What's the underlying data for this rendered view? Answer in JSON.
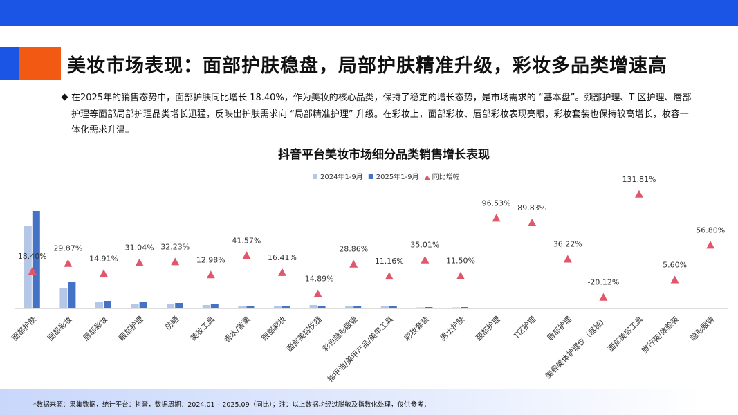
{
  "header": {
    "title": "美妆市场表现：面部护肤稳盘，局部护肤精准升级，彩妆多品类增速高"
  },
  "summary": "在2025年的销售态势中，面部护肤同比增长 18.40%，作为美妆的核心品类，保持了稳定的增长态势，是市场需求的 “基本盘”。颈部护理、T 区护理、唇部护理等面部局部护理品类增长迅猛，反映出护肤需求向 “局部精准护理” 升级。在彩妆上，面部彩妆、唇部彩妆表现亮眼，彩妆套装也保持较高增长，妆容一体化需求升温。",
  "chart_data": {
    "type": "bar",
    "title": "抖音平台美妆市场细分品类销售增长表现",
    "categories": [
      "面部护肤",
      "面部彩妆",
      "唇部彩妆",
      "眼部护理",
      "防晒",
      "美妆工具",
      "香水/香薰",
      "眼部彩妆",
      "面部美容仪器",
      "彩色隐形眼镜",
      "指甲油/美甲产品/美甲工具",
      "彩妆套装",
      "男士护肤",
      "颈部护理",
      "T区护理",
      "唇部护理",
      "美容美体护理仪（器械）",
      "面部美容工具",
      "旅行装/体验装",
      "隐形眼镜"
    ],
    "series": [
      {
        "name": "2024年1-9月",
        "color": "#b4c7e7",
        "values": [
          119,
          29,
          10,
          7,
          6,
          5,
          3,
          3,
          5,
          3,
          3,
          1.5,
          1.5,
          0.5,
          0.5,
          0.2,
          0.1,
          0.05,
          0.1,
          0.05
        ]
      },
      {
        "name": "2025年1-9月",
        "color": "#4472c4",
        "values": [
          141,
          39,
          11,
          9,
          8,
          6,
          4,
          4,
          4,
          4,
          3,
          2,
          2,
          1,
          1,
          0.3,
          0.1,
          0.1,
          0.1,
          0.1
        ]
      },
      {
        "name": "同比增幅",
        "color": "#e0566a",
        "axis": "y2",
        "marker": "triangle",
        "values": [
          18.4,
          29.87,
          14.91,
          31.04,
          32.23,
          12.98,
          41.57,
          16.41,
          -14.89,
          28.86,
          11.16,
          35.01,
          11.5,
          96.53,
          89.83,
          36.22,
          -20.12,
          131.81,
          5.6,
          56.8
        ],
        "value_labels": [
          "18.40%",
          "29.87%",
          "14.91%",
          "31.04%",
          "32.23%",
          "12.98%",
          "41.57%",
          "16.41%",
          "-14.89%",
          "28.86%",
          "11.16%",
          "35.01%",
          "11.50%",
          "96.53%",
          "89.83%",
          "36.22%",
          "-20.12%",
          "131.81%",
          "5.60%",
          "56.80%"
        ]
      }
    ],
    "ylim": [
      0,
      186
    ],
    "y2lim": [
      -36.7,
      153
    ],
    "legend": "top"
  },
  "footer": {
    "note": "*数据来源：果集数据，统计平台：抖音，数据周期：2024.01 – 2025.09（同比）；注：以上数据均经过脱敏及指数化处理，仅供参考；"
  }
}
